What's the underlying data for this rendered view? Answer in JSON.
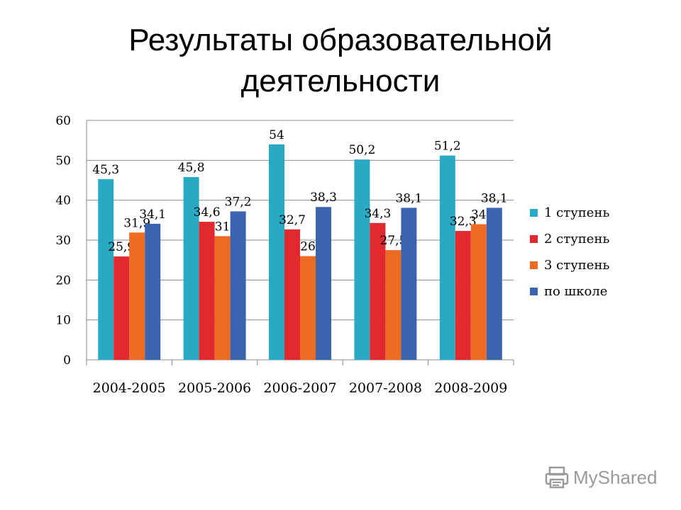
{
  "slide": {
    "title_line1": "Результаты образовательной",
    "title_line2": "деятельности"
  },
  "watermark": {
    "text": "MyShared",
    "icon": "printer-logo-icon"
  },
  "chart_data": {
    "type": "bar",
    "title": "",
    "xlabel": "",
    "ylabel": "",
    "ylim": [
      0,
      60
    ],
    "yticks": [
      0,
      10,
      20,
      30,
      40,
      50,
      60
    ],
    "grid": true,
    "legend": "right",
    "categories": [
      "2004-2005",
      "2005-2006",
      "2006-2007",
      "2007-2008",
      "2008-2009"
    ],
    "series": [
      {
        "name": "1 ступень",
        "color": "#2aa9c4",
        "values": [
          45.3,
          45.8,
          54,
          50.2,
          51.2
        ],
        "labels": [
          "45,3",
          "45,8",
          "54",
          "50,2",
          "51,2"
        ]
      },
      {
        "name": "2 ступень",
        "color": "#e2292f",
        "values": [
          25.9,
          34.6,
          32.7,
          34.3,
          32.3
        ],
        "labels": [
          "25,9",
          "34,6",
          "32,7",
          "34,3",
          "32,3"
        ]
      },
      {
        "name": "3 ступень",
        "color": "#f06b22",
        "values": [
          31.9,
          31,
          26,
          27.5,
          34
        ],
        "labels": [
          "31,9",
          "31",
          "26",
          "27,5",
          "34"
        ]
      },
      {
        "name": "по школе",
        "color": "#3a64ad",
        "values": [
          34.1,
          37.2,
          38.3,
          38.1,
          38.1
        ],
        "labels": [
          "34,1",
          "37,2",
          "38,3",
          "38,1",
          "38,1"
        ]
      }
    ]
  }
}
